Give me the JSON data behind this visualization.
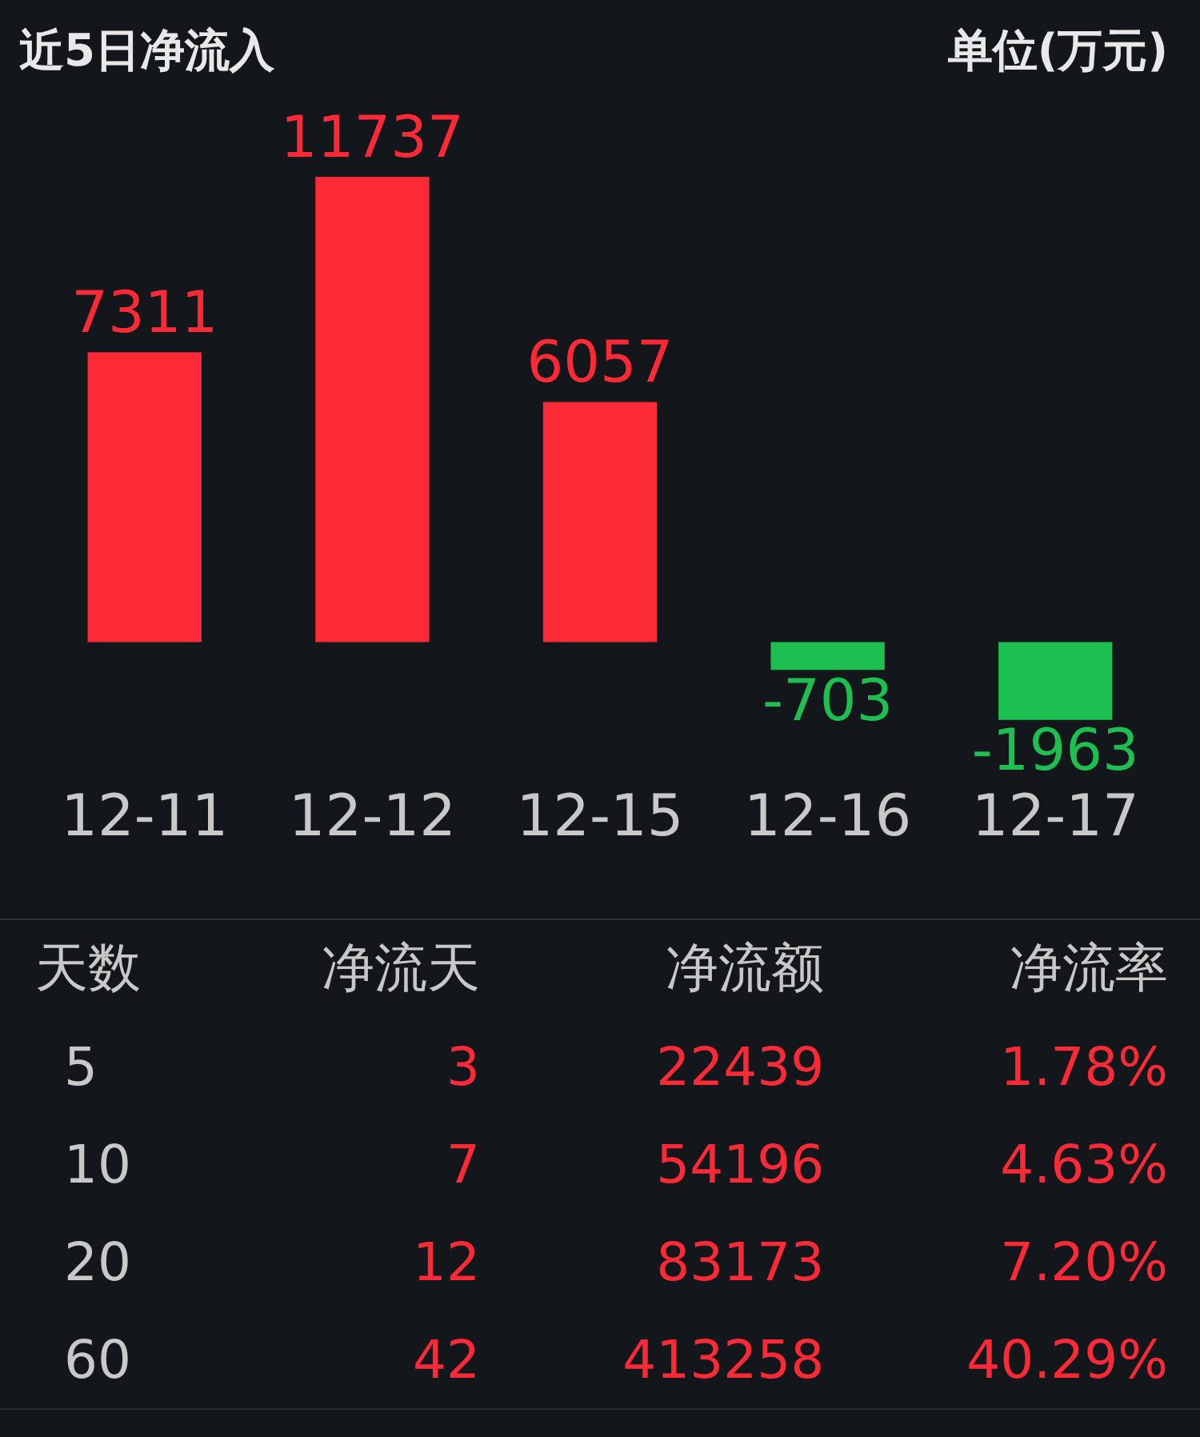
{
  "chart_data": [
    {
      "type": "bar",
      "title": "近5日净流入",
      "annotations": [
        "单位(万元)"
      ],
      "categories": [
        "12-11",
        "12-12",
        "12-15",
        "12-16",
        "12-17"
      ],
      "values": [
        7311,
        11737,
        6057,
        -703,
        -1963
      ],
      "colors": [
        "#fc2a36",
        "#fc2a36",
        "#fc2a36",
        "#1dbf50",
        "#1dbf50"
      ],
      "data_labels": true
    },
    {
      "type": "other",
      "xlabel": "天数",
      "data_labels": true,
      "categories": [
        "5",
        "10",
        "20",
        "60"
      ],
      "series": [
        {
          "name": "净流天",
          "values": [
            3,
            7,
            12,
            42
          ]
        },
        {
          "name": "净流额",
          "values": [
            22439,
            54196,
            83173,
            413258
          ]
        },
        {
          "name": "净流率",
          "values": [
            1.78,
            4.63,
            7.2,
            40.29
          ],
          "value_labels": [
            "1.78%",
            "4.63%",
            "7.20%",
            "40.29%"
          ]
        }
      ]
    }
  ]
}
